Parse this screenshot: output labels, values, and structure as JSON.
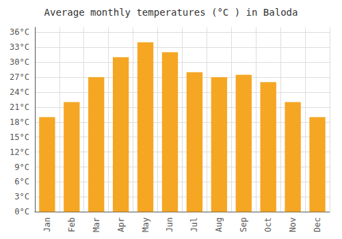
{
  "chart_data": {
    "type": "bar",
    "title": "Average monthly temperatures (°C ) in Baloda",
    "categories": [
      "Jan",
      "Feb",
      "Mar",
      "Apr",
      "May",
      "Jun",
      "Jul",
      "Aug",
      "Sep",
      "Oct",
      "Nov",
      "Dec"
    ],
    "values": [
      19.0,
      22.0,
      27.0,
      31.0,
      34.0,
      32.0,
      28.0,
      27.0,
      27.5,
      26.0,
      22.0,
      19.0
    ],
    "color": "#F5A623",
    "ylim": [
      0,
      37
    ],
    "yticks": [
      {
        "value": 0,
        "label": "0°C"
      },
      {
        "value": 3,
        "label": "3°C"
      },
      {
        "value": 6,
        "label": "6°C"
      },
      {
        "value": 9,
        "label": "9°C"
      },
      {
        "value": 12,
        "label": "12°C"
      },
      {
        "value": 15,
        "label": "15°C"
      },
      {
        "value": 18,
        "label": "18°C"
      },
      {
        "value": 21,
        "label": "21°C"
      },
      {
        "value": 24,
        "label": "24°C"
      },
      {
        "value": 27,
        "label": "27°C"
      },
      {
        "value": 30,
        "label": "30°C"
      },
      {
        "value": 33,
        "label": "33°C"
      },
      {
        "value": 36,
        "label": "36°C"
      }
    ],
    "grid": true
  }
}
